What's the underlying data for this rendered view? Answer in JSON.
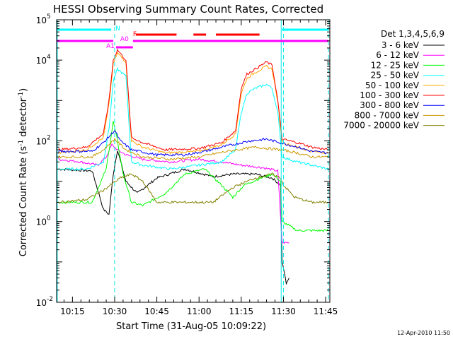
{
  "chart_data": {
    "type": "line",
    "title": "HESSI Observing Summary Count Rates, Corrected",
    "xlabel": "Start Time (31-Aug-05 10:09:22)",
    "ylabel": "Corrected Count Rate (s⁻¹ detector⁻¹)",
    "ylabel_plain": "Corrected Count Rate (s",
    "ylabel_exp1": "-1",
    "ylabel_mid": " detector",
    "ylabel_exp2": "-1",
    "ylabel_end": ")",
    "yscale": "log",
    "ylim": [
      0.01,
      100000
    ],
    "xlim_minutes": [
      609.37,
      706.5
    ],
    "x_ticks": [
      {
        "label": "10:15",
        "value": 615
      },
      {
        "label": "10:30",
        "value": 630
      },
      {
        "label": "10:45",
        "value": 645
      },
      {
        "label": "11:00",
        "value": 660
      },
      {
        "label": "11:15",
        "value": 675
      },
      {
        "label": "11:30",
        "value": 690
      },
      {
        "label": "11:45",
        "value": 705
      }
    ],
    "y_ticks": [
      {
        "base": "10",
        "exp": "-2",
        "value": 0.01
      },
      {
        "base": "10",
        "exp": "0",
        "value": 1
      },
      {
        "base": "10",
        "exp": "2",
        "value": 100
      },
      {
        "base": "10",
        "exp": "4",
        "value": 10000
      },
      {
        "base": "10",
        "exp": "5",
        "value": 100000
      }
    ],
    "legend_title": "Det 1,3,4,5,6,9",
    "legend_position": "right",
    "series": [
      {
        "name": "3 - 6 keV",
        "color": "#000000",
        "points": [
          [
            610,
            20
          ],
          [
            622,
            18
          ],
          [
            626,
            2
          ],
          [
            628,
            1.5
          ],
          [
            629.5,
            15
          ],
          [
            631,
            60
          ],
          [
            634,
            10
          ],
          [
            638,
            5
          ],
          [
            645,
            12
          ],
          [
            655,
            20
          ],
          [
            665,
            13
          ],
          [
            672,
            15
          ],
          [
            680,
            15
          ],
          [
            686,
            12
          ],
          [
            689,
            8
          ],
          [
            689.5,
            0.1
          ],
          [
            690,
            0.07
          ],
          [
            691,
            0.03
          ],
          [
            692,
            0.04
          ]
        ]
      },
      {
        "name": "6 - 12 keV",
        "color": "#ff00ff",
        "points": [
          [
            610,
            35
          ],
          [
            618,
            30
          ],
          [
            624,
            25
          ],
          [
            627,
            40
          ],
          [
            629,
            80
          ],
          [
            631,
            60
          ],
          [
            634,
            45
          ],
          [
            640,
            35
          ],
          [
            650,
            30
          ],
          [
            660,
            35
          ],
          [
            668,
            30
          ],
          [
            675,
            25
          ],
          [
            682,
            22
          ],
          [
            688,
            18
          ],
          [
            689.5,
            0.3
          ],
          [
            692,
            0.3
          ]
        ]
      },
      {
        "name": "12 - 25 keV",
        "color": "#00ff00",
        "points": [
          [
            610,
            3
          ],
          [
            622,
            3
          ],
          [
            627,
            20
          ],
          [
            629.5,
            300
          ],
          [
            631,
            100
          ],
          [
            633,
            15
          ],
          [
            636,
            3
          ],
          [
            640,
            2.5
          ],
          [
            648,
            5
          ],
          [
            655,
            15
          ],
          [
            662,
            20
          ],
          [
            668,
            8
          ],
          [
            672,
            4
          ],
          [
            676,
            8
          ],
          [
            682,
            12
          ],
          [
            686,
            15
          ],
          [
            689,
            10
          ],
          [
            689.5,
            1
          ],
          [
            695,
            0.6
          ],
          [
            706,
            0.6
          ]
        ]
      },
      {
        "name": "25 - 50 keV",
        "color": "#00ffff",
        "points": [
          [
            610,
            20
          ],
          [
            620,
            20
          ],
          [
            626,
            30
          ],
          [
            628,
            200
          ],
          [
            629.5,
            3000
          ],
          [
            631,
            6000
          ],
          [
            634,
            4000
          ],
          [
            636,
            30
          ],
          [
            640,
            25
          ],
          [
            650,
            20
          ],
          [
            660,
            25
          ],
          [
            668,
            30
          ],
          [
            673,
            60
          ],
          [
            675,
            500
          ],
          [
            677,
            1500
          ],
          [
            680,
            2000
          ],
          [
            684,
            2500
          ],
          [
            686,
            2000
          ],
          [
            688,
            500
          ],
          [
            689.5,
            40
          ],
          [
            695,
            30
          ],
          [
            700,
            25
          ],
          [
            706,
            20
          ]
        ]
      },
      {
        "name": "50 - 100 keV",
        "color": "#ffa500",
        "points": [
          [
            610,
            50
          ],
          [
            620,
            60
          ],
          [
            626,
            120
          ],
          [
            628,
            800
          ],
          [
            629.5,
            8000
          ],
          [
            631,
            15000
          ],
          [
            634,
            9000
          ],
          [
            636,
            100
          ],
          [
            640,
            70
          ],
          [
            648,
            50
          ],
          [
            660,
            55
          ],
          [
            668,
            80
          ],
          [
            673,
            150
          ],
          [
            675,
            1500
          ],
          [
            677,
            3500
          ],
          [
            680,
            5000
          ],
          [
            684,
            7000
          ],
          [
            686,
            6000
          ],
          [
            688,
            900
          ],
          [
            689.5,
            90
          ],
          [
            695,
            70
          ],
          [
            700,
            55
          ],
          [
            706,
            50
          ]
        ]
      },
      {
        "name": "100 - 300 keV",
        "color": "#ff0000",
        "points": [
          [
            610,
            60
          ],
          [
            620,
            70
          ],
          [
            626,
            150
          ],
          [
            628,
            1000
          ],
          [
            629.5,
            10000
          ],
          [
            631,
            18000
          ],
          [
            634,
            10000
          ],
          [
            636,
            120
          ],
          [
            640,
            90
          ],
          [
            648,
            60
          ],
          [
            660,
            65
          ],
          [
            668,
            90
          ],
          [
            673,
            180
          ],
          [
            675,
            2000
          ],
          [
            677,
            4500
          ],
          [
            680,
            6000
          ],
          [
            684,
            9000
          ],
          [
            686,
            7500
          ],
          [
            688,
            1000
          ],
          [
            689.5,
            110
          ],
          [
            695,
            90
          ],
          [
            700,
            70
          ],
          [
            706,
            60
          ]
        ]
      },
      {
        "name": "300 - 800 keV",
        "color": "#0000ff",
        "points": [
          [
            610,
            55
          ],
          [
            622,
            55
          ],
          [
            626,
            90
          ],
          [
            630,
            180
          ],
          [
            632,
            100
          ],
          [
            636,
            60
          ],
          [
            645,
            45
          ],
          [
            655,
            45
          ],
          [
            662,
            55
          ],
          [
            670,
            75
          ],
          [
            678,
            100
          ],
          [
            684,
            110
          ],
          [
            689,
            90
          ],
          [
            695,
            70
          ],
          [
            700,
            55
          ],
          [
            706,
            50
          ]
        ]
      },
      {
        "name": "800 - 7000 keV",
        "color": "#cc9900",
        "points": [
          [
            610,
            40
          ],
          [
            622,
            40
          ],
          [
            626,
            60
          ],
          [
            630,
            110
          ],
          [
            634,
            60
          ],
          [
            640,
            40
          ],
          [
            650,
            35
          ],
          [
            660,
            40
          ],
          [
            670,
            55
          ],
          [
            680,
            70
          ],
          [
            689,
            60
          ],
          [
            695,
            50
          ],
          [
            700,
            40
          ],
          [
            706,
            40
          ]
        ]
      },
      {
        "name": "7000 - 20000 keV",
        "color": "#808000",
        "points": [
          [
            610,
            3
          ],
          [
            620,
            3.5
          ],
          [
            626,
            6
          ],
          [
            632,
            12
          ],
          [
            636,
            15
          ],
          [
            640,
            10
          ],
          [
            645,
            3
          ],
          [
            650,
            3
          ],
          [
            655,
            3
          ],
          [
            665,
            3
          ],
          [
            672,
            7
          ],
          [
            680,
            12
          ],
          [
            686,
            15
          ],
          [
            689,
            12
          ],
          [
            690,
            8
          ],
          [
            694,
            4
          ],
          [
            700,
            3
          ],
          [
            706,
            3
          ]
        ]
      }
    ],
    "annotations": {
      "attenuator_labels": [
        {
          "text": "A1",
          "color": "#ff00ff"
        },
        {
          "text": "A0",
          "color": "#ff00ff"
        }
      ],
      "night_label": {
        "text": "N",
        "color": "#00ffff"
      },
      "flare_label": {
        "text": "F",
        "color": "#ff0000"
      }
    }
  },
  "footer": {
    "date_stamp": "12-Apr-2010 11:50"
  }
}
